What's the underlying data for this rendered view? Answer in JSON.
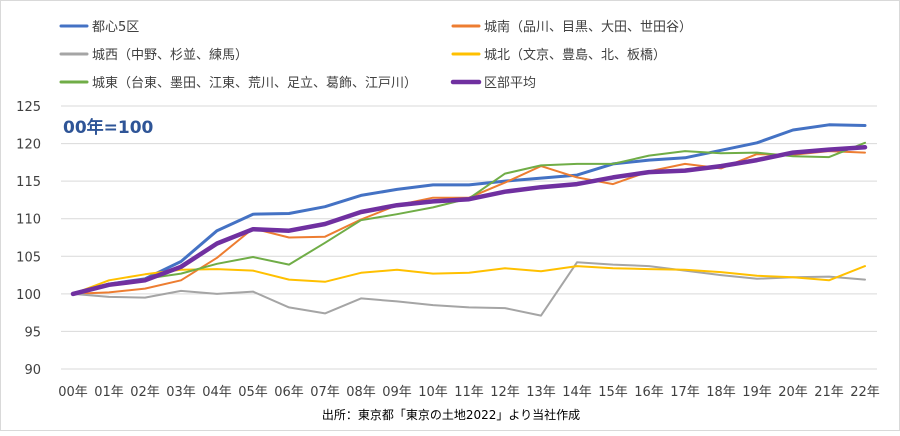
{
  "chart_data": {
    "type": "line",
    "categories": [
      "00年",
      "01年",
      "02年",
      "03年",
      "04年",
      "05年",
      "06年",
      "07年",
      "08年",
      "09年",
      "10年",
      "11年",
      "12年",
      "13年",
      "14年",
      "15年",
      "16年",
      "17年",
      "18年",
      "19年",
      "20年",
      "21年",
      "22年"
    ],
    "ylim": [
      90,
      125
    ],
    "yticks": [
      90,
      95,
      100,
      105,
      110,
      115,
      120,
      125
    ],
    "annotation": "00年=100",
    "source": "出所：東京都「東京の土地2022」より当社作成",
    "grid": "horizontal",
    "legend_position": "top",
    "series": [
      {
        "name": "都心5区",
        "color": "#4472C4",
        "width": 3,
        "values": [
          100,
          101.3,
          102.0,
          104.3,
          108.4,
          110.6,
          110.7,
          111.6,
          113.1,
          113.9,
          114.5,
          114.5,
          115.0,
          115.4,
          115.8,
          117.3,
          117.8,
          118.1,
          119.1,
          120.1,
          121.8,
          122.5,
          122.4
        ]
      },
      {
        "name": "城南（品川、目黒、大田、世田谷）",
        "color": "#ED7D31",
        "width": 2,
        "values": [
          100,
          100.2,
          100.7,
          101.8,
          104.8,
          108.7,
          107.5,
          107.6,
          109.9,
          111.8,
          112.8,
          112.8,
          114.8,
          117.0,
          115.5,
          114.6,
          116.3,
          117.3,
          116.7,
          118.6,
          118.5,
          119.0,
          118.8
        ]
      },
      {
        "name": "城西（中野、杉並、練馬）",
        "color": "#A5A5A5",
        "width": 2,
        "values": [
          100,
          99.6,
          99.5,
          100.4,
          100.0,
          100.3,
          98.2,
          97.4,
          99.4,
          99.0,
          98.5,
          98.2,
          98.1,
          97.1,
          104.2,
          103.9,
          103.7,
          103.1,
          102.5,
          102.0,
          102.2,
          102.3,
          101.9
        ]
      },
      {
        "name": "城北（文京、豊島、北、板橋）",
        "color": "#FFC000",
        "width": 2,
        "values": [
          100,
          101.8,
          102.6,
          103.2,
          103.3,
          103.1,
          101.9,
          101.6,
          102.8,
          103.2,
          102.7,
          102.8,
          103.4,
          103.0,
          103.7,
          103.4,
          103.3,
          103.2,
          102.9,
          102.4,
          102.2,
          101.8,
          103.7
        ]
      },
      {
        "name": "城東（台東、墨田、江東、荒川、足立、葛飾、江戸川）",
        "color": "#70AD47",
        "width": 2,
        "values": [
          100,
          101.2,
          102.0,
          102.7,
          104.0,
          104.9,
          103.9,
          106.8,
          109.8,
          110.6,
          111.5,
          112.7,
          116.0,
          117.1,
          117.3,
          117.3,
          118.4,
          119.0,
          118.7,
          118.8,
          118.3,
          118.2,
          120.1
        ]
      },
      {
        "name": "区部平均",
        "color": "#7030A0",
        "width": 4.5,
        "values": [
          100,
          101.2,
          101.8,
          103.6,
          106.7,
          108.6,
          108.4,
          109.3,
          110.9,
          111.8,
          112.3,
          112.6,
          113.6,
          114.2,
          114.6,
          115.5,
          116.2,
          116.4,
          117.0,
          117.8,
          118.8,
          119.2,
          119.5
        ]
      }
    ]
  }
}
